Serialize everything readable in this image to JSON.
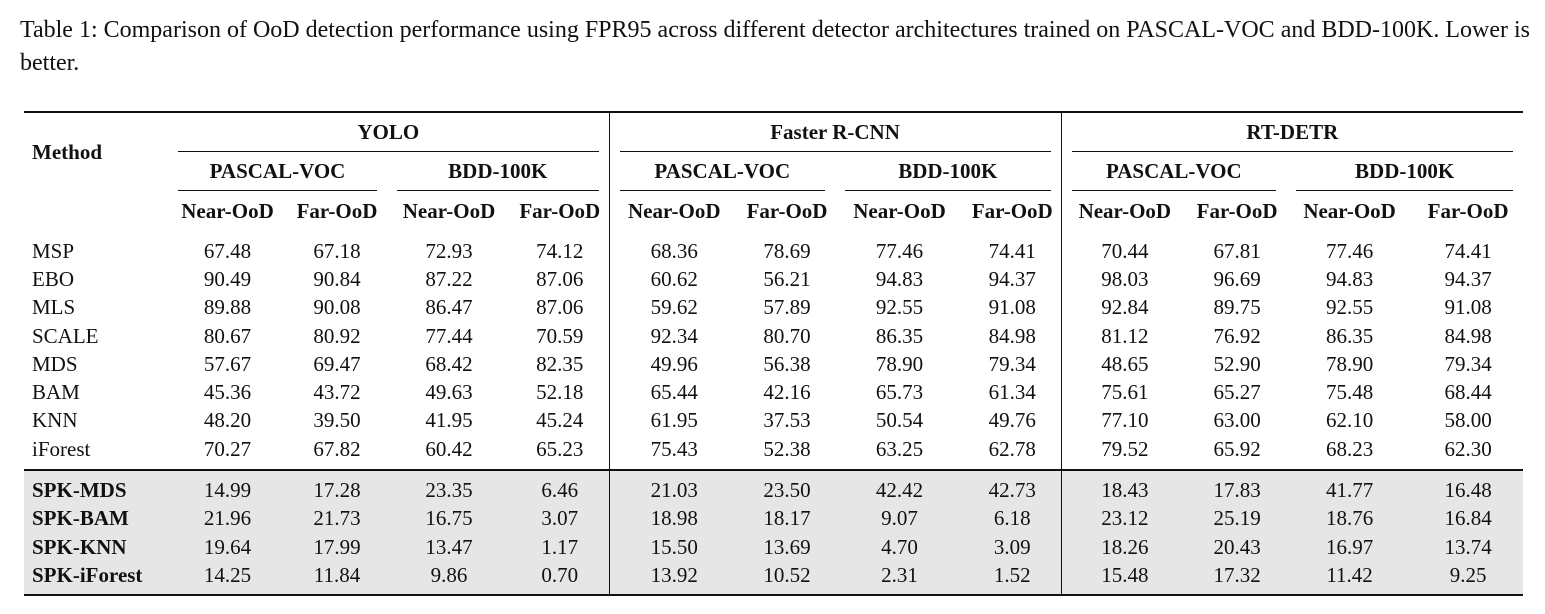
{
  "caption": "Table 1: Comparison of OoD detection performance using FPR95 across different detector architectures trained on PASCAL-VOC and BDD-100K. Lower is better.",
  "header": {
    "method": "Method",
    "architectures": [
      "YOLO",
      "Faster R-CNN",
      "RT-DETR"
    ],
    "datasets": [
      "PASCAL-VOC",
      "BDD-100K",
      "PASCAL-VOC",
      "BDD-100K",
      "PASCAL-VOC",
      "BDD-100K"
    ],
    "splits": [
      "Near-OoD",
      "Far-OoD",
      "Near-OoD",
      "Far-OoD",
      "Near-OoD",
      "Far-OoD",
      "Near-OoD",
      "Far-OoD",
      "Near-OoD",
      "Far-OoD",
      "Near-OoD",
      "Far-OoD"
    ]
  },
  "baseline_rows": [
    {
      "method": "MSP",
      "values": [
        "67.48",
        "67.18",
        "72.93",
        "74.12",
        "68.36",
        "78.69",
        "77.46",
        "74.41",
        "70.44",
        "67.81",
        "77.46",
        "74.41"
      ]
    },
    {
      "method": "EBO",
      "values": [
        "90.49",
        "90.84",
        "87.22",
        "87.06",
        "60.62",
        "56.21",
        "94.83",
        "94.37",
        "98.03",
        "96.69",
        "94.83",
        "94.37"
      ]
    },
    {
      "method": "MLS",
      "values": [
        "89.88",
        "90.08",
        "86.47",
        "87.06",
        "59.62",
        "57.89",
        "92.55",
        "91.08",
        "92.84",
        "89.75",
        "92.55",
        "91.08"
      ]
    },
    {
      "method": "SCALE",
      "values": [
        "80.67",
        "80.92",
        "77.44",
        "70.59",
        "92.34",
        "80.70",
        "86.35",
        "84.98",
        "81.12",
        "76.92",
        "86.35",
        "84.98"
      ]
    },
    {
      "method": "MDS",
      "values": [
        "57.67",
        "69.47",
        "68.42",
        "82.35",
        "49.96",
        "56.38",
        "78.90",
        "79.34",
        "48.65",
        "52.90",
        "78.90",
        "79.34"
      ]
    },
    {
      "method": "BAM",
      "values": [
        "45.36",
        "43.72",
        "49.63",
        "52.18",
        "65.44",
        "42.16",
        "65.73",
        "61.34",
        "75.61",
        "65.27",
        "75.48",
        "68.44"
      ]
    },
    {
      "method": "KNN",
      "values": [
        "48.20",
        "39.50",
        "41.95",
        "45.24",
        "61.95",
        "37.53",
        "50.54",
        "49.76",
        "77.10",
        "63.00",
        "62.10",
        "58.00"
      ]
    },
    {
      "method": "iForest",
      "values": [
        "70.27",
        "67.82",
        "60.42",
        "65.23",
        "75.43",
        "52.38",
        "63.25",
        "62.78",
        "79.52",
        "65.92",
        "68.23",
        "62.30"
      ]
    }
  ],
  "spk_rows": [
    {
      "method": "SPK-MDS",
      "values": [
        "14.99",
        "17.28",
        "23.35",
        "6.46",
        "21.03",
        "23.50",
        "42.42",
        "42.73",
        "18.43",
        "17.83",
        "41.77",
        "16.48"
      ]
    },
    {
      "method": "SPK-BAM",
      "values": [
        "21.96",
        "21.73",
        "16.75",
        "3.07",
        "18.98",
        "18.17",
        "9.07",
        "6.18",
        "23.12",
        "25.19",
        "18.76",
        "16.84"
      ]
    },
    {
      "method": "SPK-KNN",
      "values": [
        "19.64",
        "17.99",
        "13.47",
        "1.17",
        "15.50",
        "13.69",
        "4.70",
        "3.09",
        "18.26",
        "20.43",
        "16.97",
        "13.74"
      ]
    },
    {
      "method": "SPK-iForest",
      "bold": true,
      "values": [
        "14.25",
        "11.84",
        "9.86",
        "0.70",
        "13.92",
        "10.52",
        "2.31",
        "1.52",
        "15.48",
        "17.32",
        "11.42",
        "9.25"
      ]
    }
  ]
}
